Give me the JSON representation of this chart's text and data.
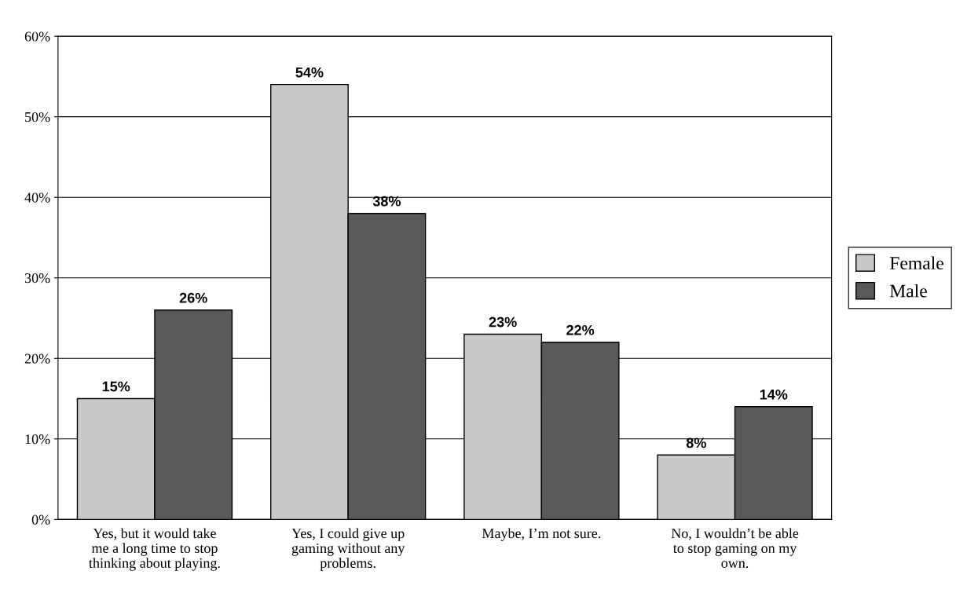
{
  "chart_data": {
    "type": "bar",
    "categories": [
      "Yes, but it would take\nme a long time to stop\nthinking about playing.",
      "Yes, I could give up\ngaming without any\nproblems.",
      "Maybe, I’m not sure.",
      "No, I wouldn’t be able\nto stop gaming on my\nown."
    ],
    "series": [
      {
        "name": "Female",
        "color": "#c8c8c8",
        "values": [
          15,
          54,
          23,
          8
        ],
        "value_labels": [
          "15%",
          "54%",
          "23%",
          "8%"
        ]
      },
      {
        "name": "Male",
        "color": "#595959",
        "values": [
          26,
          38,
          22,
          14
        ],
        "value_labels": [
          "26%",
          "38%",
          "22%",
          "14%"
        ]
      }
    ],
    "ylim": [
      0,
      60
    ],
    "yticks": [
      {
        "value": 0,
        "label": "0%"
      },
      {
        "value": 10,
        "label": "10%"
      },
      {
        "value": 20,
        "label": "20%"
      },
      {
        "value": 30,
        "label": "30%"
      },
      {
        "value": 40,
        "label": "40%"
      },
      {
        "value": 50,
        "label": "50%"
      },
      {
        "value": 60,
        "label": "60%"
      }
    ],
    "grid": "y",
    "legend": "right"
  }
}
